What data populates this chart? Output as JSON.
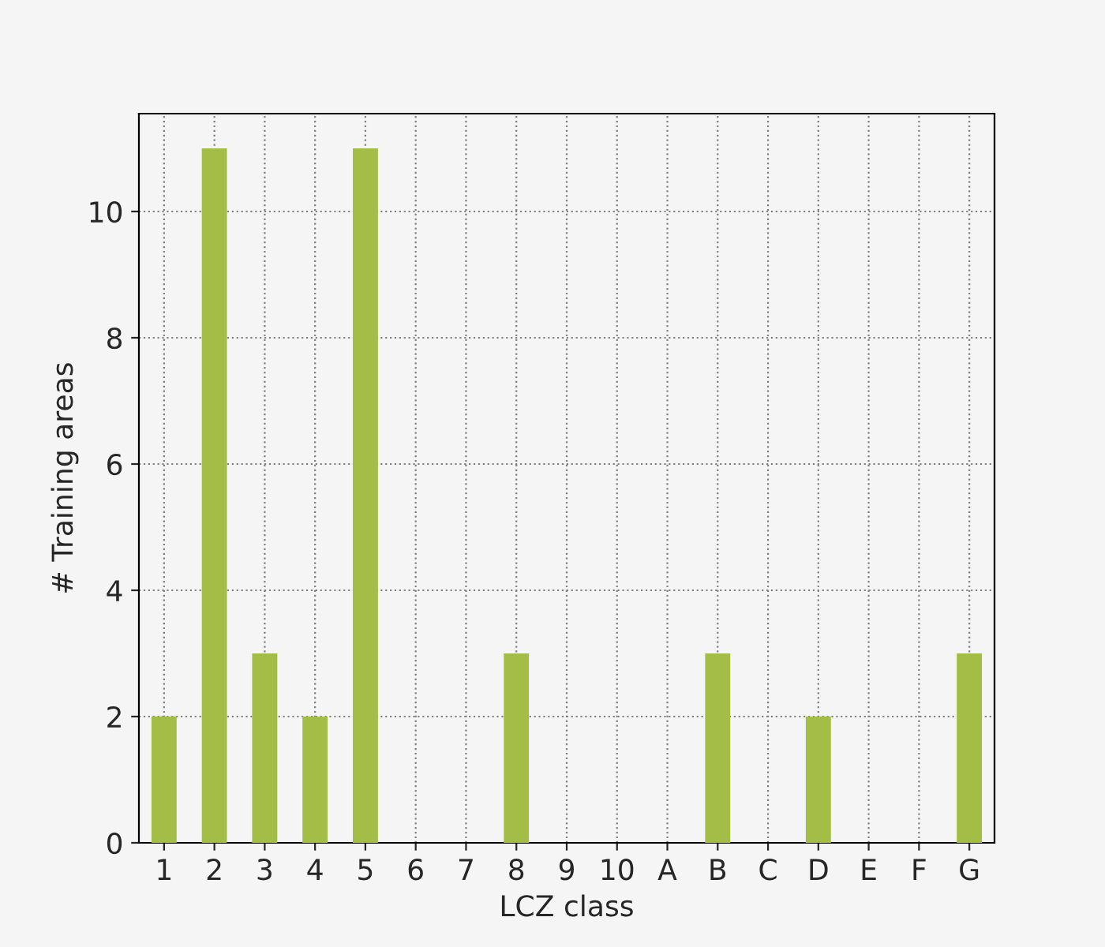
{
  "chart_data": {
    "type": "bar",
    "xlabel": "LCZ class",
    "ylabel": "# Training areas",
    "categories": [
      "1",
      "2",
      "3",
      "4",
      "5",
      "6",
      "7",
      "8",
      "9",
      "10",
      "A",
      "B",
      "C",
      "D",
      "E",
      "F",
      "G"
    ],
    "values": [
      2,
      11,
      3,
      2,
      11,
      0,
      0,
      3,
      0,
      0,
      0,
      3,
      0,
      2,
      0,
      0,
      3
    ],
    "color": "#a4bd46",
    "ylim": [
      0,
      11.55
    ],
    "yticks": [
      0,
      2,
      4,
      6,
      8,
      10
    ],
    "grid": true
  }
}
